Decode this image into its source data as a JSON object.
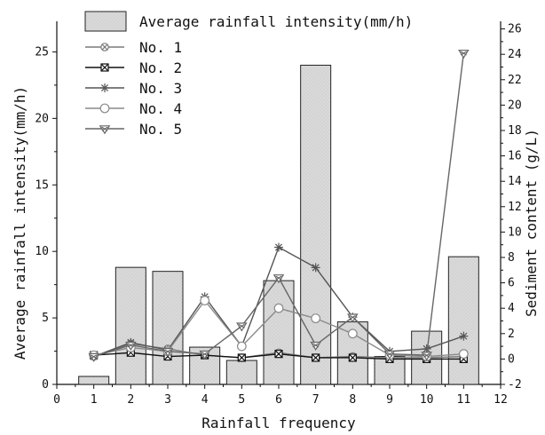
{
  "chart_data": {
    "type": "bar",
    "xlabel": "Rainfall frequency",
    "ylabel_left": "Average rainfall intensity(mm/h)",
    "ylabel_right": "Sediment content (g/L)",
    "x_ticks": [
      0,
      1,
      2,
      3,
      4,
      5,
      6,
      7,
      8,
      9,
      10,
      11,
      12
    ],
    "y_left_ticks": [
      0,
      5,
      10,
      15,
      20,
      25
    ],
    "y_right_ticks": [
      -2,
      0,
      2,
      4,
      6,
      8,
      10,
      12,
      14,
      16,
      18,
      20,
      22,
      24,
      26
    ],
    "xlim": [
      0,
      12
    ],
    "ylim_left": [
      0,
      27.3
    ],
    "ylim_right": [
      -2,
      26.6
    ],
    "legend_position": "top-left",
    "bars": {
      "name": "Average rainfall intensity(mm/h)",
      "axis": "left",
      "x": [
        1,
        2,
        3,
        4,
        5,
        6,
        7,
        8,
        9,
        10,
        11
      ],
      "values": [
        0.6,
        8.8,
        8.5,
        2.8,
        1.8,
        7.8,
        24.0,
        4.7,
        2.1,
        4.0,
        9.6
      ],
      "color": "#d9d9d9"
    },
    "series": [
      {
        "name": "No. 1",
        "axis": "right",
        "marker": "circle-x",
        "color": "#7a7a7a",
        "x": [
          1,
          2,
          3,
          4,
          5,
          6,
          7,
          8,
          9,
          10,
          11
        ],
        "values": [
          0.2,
          1.2,
          0.8,
          0.3,
          0.1,
          0.5,
          0.1,
          0.2,
          0.1,
          0.1,
          0.2
        ]
      },
      {
        "name": "No. 2",
        "axis": "right",
        "marker": "square-x",
        "color": "#111111",
        "x": [
          1,
          2,
          3,
          4,
          5,
          6,
          7,
          8,
          9,
          10,
          11
        ],
        "values": [
          0.3,
          0.5,
          0.2,
          0.3,
          0.1,
          0.4,
          0.1,
          0.1,
          0.0,
          0.0,
          0.0
        ]
      },
      {
        "name": "No. 3",
        "axis": "right",
        "marker": "asterisk",
        "color": "#555555",
        "x": [
          1,
          2,
          3,
          4,
          5,
          6,
          7,
          8,
          9,
          10,
          11
        ],
        "values": [
          0.2,
          1.3,
          0.7,
          4.9,
          1.0,
          8.8,
          7.2,
          3.3,
          0.6,
          0.8,
          1.8
        ]
      },
      {
        "name": "No. 4",
        "axis": "right",
        "marker": "circle",
        "color": "#8a8a8a",
        "x": [
          1,
          2,
          3,
          4,
          5,
          6,
          7,
          8,
          9,
          10,
          11
        ],
        "values": [
          0.3,
          0.9,
          0.6,
          4.6,
          1.0,
          4.0,
          3.2,
          2.0,
          0.3,
          0.2,
          0.4
        ]
      },
      {
        "name": "No. 5",
        "axis": "right",
        "marker": "triangle-down-x",
        "color": "#666666",
        "x": [
          1,
          2,
          3,
          4,
          5,
          6,
          7,
          8,
          9,
          10,
          11
        ],
        "values": [
          0.2,
          1.1,
          0.6,
          0.4,
          2.6,
          6.4,
          1.1,
          3.3,
          0.4,
          0.3,
          24.1
        ]
      }
    ]
  }
}
